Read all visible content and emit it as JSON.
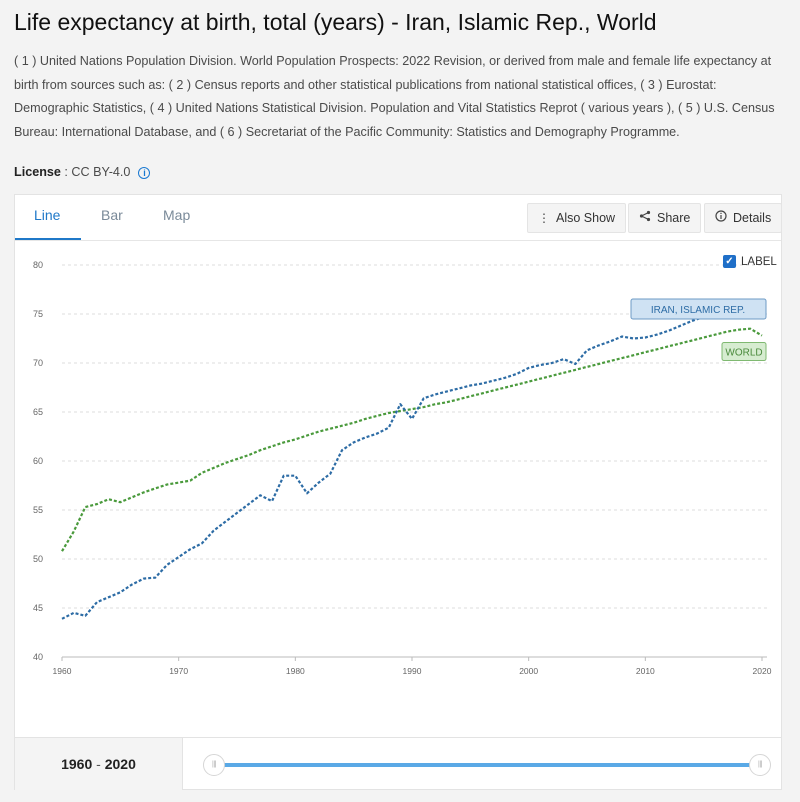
{
  "title": "Life expectancy at birth, total (years) - Iran, Islamic Rep., World",
  "sources": "( 1 ) United Nations Population Division. World Population Prospects: 2022 Revision, or derived from male and female life expectancy at birth from sources such as: ( 2 ) Census reports and other statistical publications from national statistical offices, ( 3 ) Eurostat: Demographic Statistics, ( 4 ) United Nations Statistical Division. Population and Vital Statistics Reprot ( various years ), ( 5 ) U.S. Census Bureau: International Database, and ( 6 ) Secretariat of the Pacific Community: Statistics and Demography Programme.",
  "license": {
    "label": "License",
    "separator": " : ",
    "value": "CC BY-4.0",
    "icon": "info-icon"
  },
  "tabs": [
    "Line",
    "Bar",
    "Map"
  ],
  "active_tab": "Line",
  "toolbar": {
    "also_show": "Also Show",
    "share": "Share",
    "details": "Details",
    "icons": [
      "vertical-dots-icon",
      "share-icon",
      "info-icon"
    ]
  },
  "label_toggle": {
    "text": "LABEL",
    "checked": true
  },
  "range": {
    "start": "1960",
    "end": "2020",
    "separator": " - "
  },
  "colors": {
    "iran": "#2d6ca5",
    "world": "#4a9a3c",
    "accent": "#1f78c8",
    "slider": "#5aa9e6"
  },
  "chart_data": {
    "type": "line",
    "title": "",
    "xlabel": "",
    "ylabel": "",
    "xlim": [
      1960,
      2020
    ],
    "ylim": [
      40,
      80
    ],
    "xticks": [
      1960,
      1970,
      1980,
      1990,
      2000,
      2010,
      2020
    ],
    "yticks": [
      40,
      45,
      50,
      55,
      60,
      65,
      70,
      75,
      80
    ],
    "grid": true,
    "x": [
      1960,
      1961,
      1962,
      1963,
      1964,
      1965,
      1966,
      1967,
      1968,
      1969,
      1970,
      1971,
      1972,
      1973,
      1974,
      1975,
      1976,
      1977,
      1978,
      1979,
      1980,
      1981,
      1982,
      1983,
      1984,
      1985,
      1986,
      1987,
      1988,
      1989,
      1990,
      1991,
      1992,
      1993,
      1994,
      1995,
      1996,
      1997,
      1998,
      1999,
      2000,
      2001,
      2002,
      2003,
      2004,
      2005,
      2006,
      2007,
      2008,
      2009,
      2010,
      2011,
      2012,
      2013,
      2014,
      2015,
      2016,
      2017,
      2018,
      2019,
      2020
    ],
    "series": [
      {
        "name": "IRAN, ISLAMIC REP.",
        "values": [
          43.9,
          44.5,
          44.2,
          45.6,
          46.1,
          46.6,
          47.4,
          48.0,
          48.1,
          49.4,
          50.2,
          51.0,
          51.6,
          52.9,
          53.8,
          54.7,
          55.6,
          56.5,
          55.9,
          58.5,
          58.5,
          56.7,
          57.8,
          58.7,
          61.1,
          61.9,
          62.4,
          62.8,
          63.4,
          65.8,
          64.3,
          66.4,
          66.8,
          67.1,
          67.4,
          67.7,
          67.9,
          68.2,
          68.5,
          68.9,
          69.5,
          69.8,
          70.0,
          70.4,
          69.9,
          71.3,
          71.8,
          72.2,
          72.7,
          72.5,
          72.6,
          72.9,
          73.3,
          73.8,
          74.3,
          74.7,
          75.1,
          75.6,
          76.0,
          76.1,
          74.8
        ]
      },
      {
        "name": "WORLD",
        "values": [
          50.8,
          52.8,
          55.3,
          55.6,
          56.1,
          55.8,
          56.3,
          56.8,
          57.2,
          57.6,
          57.8,
          58.0,
          58.8,
          59.3,
          59.8,
          60.2,
          60.6,
          61.1,
          61.5,
          61.9,
          62.2,
          62.6,
          63.0,
          63.3,
          63.6,
          63.9,
          64.3,
          64.6,
          64.9,
          65.1,
          65.3,
          65.5,
          65.8,
          66.0,
          66.3,
          66.6,
          66.9,
          67.2,
          67.5,
          67.8,
          68.1,
          68.4,
          68.7,
          69.0,
          69.3,
          69.6,
          69.9,
          70.2,
          70.5,
          70.8,
          71.1,
          71.4,
          71.7,
          72.0,
          72.3,
          72.6,
          72.9,
          73.2,
          73.4,
          73.5,
          72.8
        ]
      }
    ],
    "labels": {
      "iran": "IRAN, ISLAMIC REP.",
      "world": "WORLD"
    }
  }
}
